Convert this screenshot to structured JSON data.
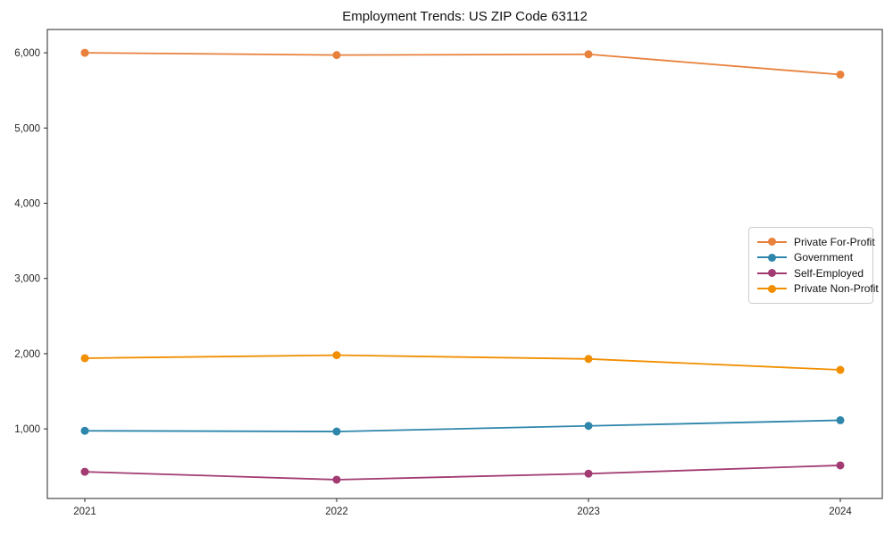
{
  "title": "Employment Trends: US ZIP Code 63112",
  "chart_data": {
    "type": "line",
    "title": "Employment Trends: US ZIP Code 63112",
    "x": [
      2021,
      2022,
      2023,
      2024
    ],
    "xtick_labels": [
      "2021",
      "2022",
      "2023",
      "2024"
    ],
    "ytick_values": [
      1000,
      2000,
      3000,
      4000,
      5000,
      6000
    ],
    "ytick_labels": [
      "1,000",
      "2,000",
      "3,000",
      "4,000",
      "5,000",
      "6,000"
    ],
    "ylim": [
      75,
      6310
    ],
    "grid": false,
    "marker": "circle",
    "legend_position": "center-right",
    "series": [
      {
        "name": "Private For-Profit",
        "color": "#E8813C",
        "values": [
          6000,
          5970,
          5980,
          5710
        ]
      },
      {
        "name": "Government",
        "color": "#2E86AB",
        "values": [
          975,
          965,
          1040,
          1115
        ]
      },
      {
        "name": "Self-Employed",
        "color": "#A23B72",
        "values": [
          430,
          325,
          405,
          515
        ]
      },
      {
        "name": "Private Non-Profit",
        "color": "#F18F01",
        "values": [
          1940,
          1980,
          1930,
          1785
        ]
      }
    ],
    "axis_color": "#262626",
    "tick_label_color": "#262626"
  }
}
